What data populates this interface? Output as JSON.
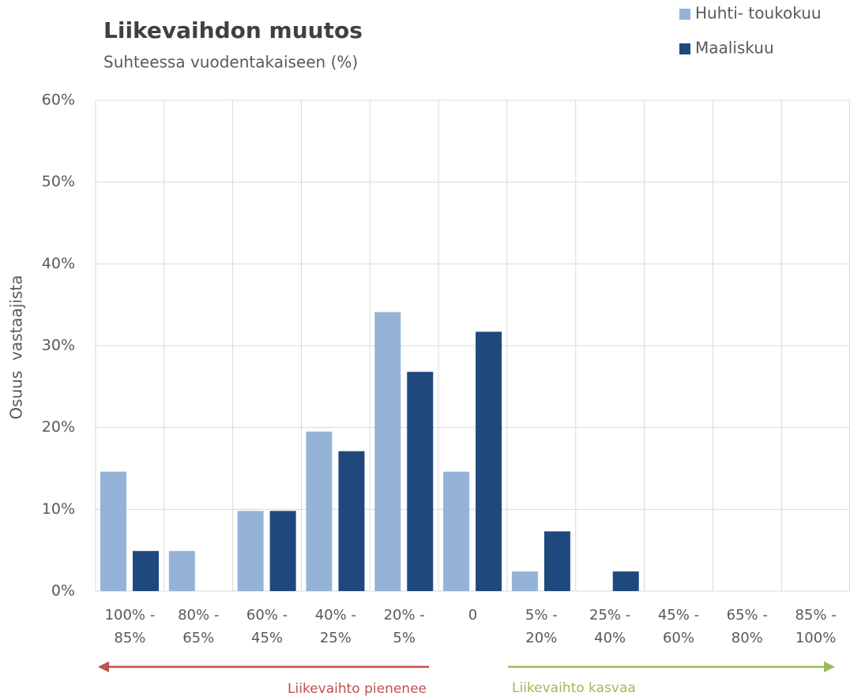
{
  "chart_data": {
    "type": "bar",
    "title": "Liikevaihdon muutos",
    "subtitle": "Suhteessa vuodentakaiseen (%)",
    "y_label": "Osuus  vastaajista",
    "categories": [
      "100% -\n85%",
      "80% -\n65%",
      "60% -\n45%",
      "40% -\n25%",
      "20% -\n5%",
      "0",
      "5% -\n20%",
      "25% -\n40%",
      "45% -\n60%",
      "65% -\n80%",
      "85% -\n100%"
    ],
    "series": [
      {
        "name": "Huhti- toukokuu",
        "color": "#95b3d7",
        "values": [
          14.6,
          4.9,
          9.8,
          19.5,
          34.1,
          14.6,
          2.4,
          0,
          0,
          0,
          0
        ]
      },
      {
        "name": "Maaliskuu",
        "color": "#1f497d",
        "values": [
          4.9,
          0,
          9.8,
          17.1,
          26.8,
          31.7,
          7.3,
          2.4,
          0,
          0,
          0
        ]
      }
    ],
    "ylim": [
      0,
      60
    ],
    "yticks": [
      {
        "value": 0,
        "label": "0%"
      },
      {
        "value": 10,
        "label": "10%"
      },
      {
        "value": 20,
        "label": "20%"
      },
      {
        "value": 30,
        "label": "30%"
      },
      {
        "value": 40,
        "label": "40%"
      },
      {
        "value": 50,
        "label": "50%"
      },
      {
        "value": 60,
        "label": "60%"
      }
    ],
    "grid": true,
    "annotations": [
      {
        "text": "Liikevaihto pienenee",
        "color": "#c0504d"
      },
      {
        "text": "Liikevaihto kasvaa",
        "color": "#9bbb59"
      }
    ]
  }
}
